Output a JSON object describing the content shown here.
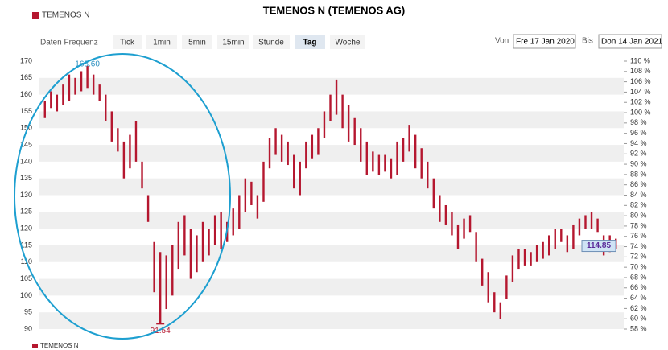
{
  "toolbar": {
    "label": "Daten Frequenz",
    "buttons": [
      "Tick",
      "1min",
      "5min",
      "15min",
      "Stunde",
      "Tag",
      "Woche"
    ],
    "active_index": 5,
    "from_label": "Von",
    "from": "Fre 17 Jan 2020",
    "to_label": "Bis",
    "to": "Don 14 Jan 2021"
  },
  "chart_data": {
    "type": "range_bar",
    "title": "TEMENOS N (TEMENOS AG)",
    "series": [
      {
        "name": "TEMENOS N",
        "color": "#b5172f",
        "low": [
          153,
          156,
          155,
          157,
          158,
          160,
          161,
          162,
          160,
          158,
          152,
          146,
          143,
          135,
          138,
          140,
          132,
          122,
          101,
          91.54,
          96,
          100,
          108,
          112,
          105,
          107,
          110,
          112,
          115,
          114,
          116,
          118,
          120,
          125,
          127,
          123,
          128,
          138,
          142,
          140,
          139,
          132,
          130,
          138,
          141,
          142,
          147,
          152,
          154,
          150,
          146,
          145,
          140,
          136,
          137,
          136,
          137,
          135,
          136,
          140,
          143,
          138,
          135,
          132,
          126,
          122,
          121,
          118,
          114,
          117,
          119,
          110,
          103,
          98,
          95,
          93,
          99,
          104,
          108,
          109,
          109,
          110,
          111,
          112,
          114,
          116,
          113,
          114,
          118,
          120,
          120,
          119,
          112,
          113,
          114
        ],
        "high": [
          158,
          161,
          160,
          163,
          166,
          165,
          167,
          168.6,
          166,
          163,
          160,
          155,
          150,
          146,
          148,
          152,
          140,
          130,
          116,
          113,
          112,
          115,
          122,
          124,
          120,
          118,
          122,
          120,
          124,
          125,
          122,
          126,
          130,
          135,
          134,
          130,
          140,
          147,
          150,
          148,
          146,
          142,
          140,
          146,
          148,
          150,
          155,
          160,
          164.5,
          160,
          157,
          153,
          150,
          146,
          143,
          142,
          142,
          141,
          146,
          147,
          151,
          148,
          144,
          140,
          135,
          130,
          127,
          125,
          121,
          123,
          124,
          119,
          111,
          107,
          101,
          98,
          106,
          112,
          114,
          114,
          113,
          115,
          116,
          118,
          120,
          120,
          118,
          121,
          123,
          124,
          125,
          123,
          118,
          118,
          117
        ]
      }
    ],
    "ylim": [
      90,
      170
    ],
    "yticks": [
      90,
      95,
      100,
      105,
      110,
      115,
      120,
      125,
      130,
      135,
      140,
      145,
      150,
      155,
      160,
      165,
      170
    ],
    "y2lim": [
      58,
      110
    ],
    "y2ticks": [
      {
        "value": 110,
        "label": "110 %"
      },
      {
        "value": 108,
        "label": "108 %"
      },
      {
        "value": 106,
        "label": "106 %"
      },
      {
        "value": 104,
        "label": "104 %"
      },
      {
        "value": 102,
        "label": "102 %"
      },
      {
        "value": 100,
        "label": "100 %"
      },
      {
        "value": 98,
        "label": "98 %"
      },
      {
        "value": 96,
        "label": "96 %"
      },
      {
        "value": 94,
        "label": "94 %"
      },
      {
        "value": 92,
        "label": "92 %"
      },
      {
        "value": 90,
        "label": "90 %"
      },
      {
        "value": 88,
        "label": "88 %"
      },
      {
        "value": 86,
        "label": "86 %"
      },
      {
        "value": 84,
        "label": "84 %"
      },
      {
        "value": 82,
        "label": "82 %"
      },
      {
        "value": 80,
        "label": "80 %"
      },
      {
        "value": 78,
        "label": "78 %"
      },
      {
        "value": 76,
        "label": "76 %"
      },
      {
        "value": 74,
        "label": "74 %"
      },
      {
        "value": 72,
        "label": "72 %"
      },
      {
        "value": 70,
        "label": "70 %"
      },
      {
        "value": 68,
        "label": "68 %"
      },
      {
        "value": 66,
        "label": "66 %"
      },
      {
        "value": 64,
        "label": "64 %"
      },
      {
        "value": 62,
        "label": "62 %"
      },
      {
        "value": 60,
        "label": "60 %"
      },
      {
        "value": 58,
        "label": "58 %"
      }
    ],
    "high_label": {
      "value": 168.6,
      "label": "168.60"
    },
    "low_label": {
      "value": 91.54,
      "label": "91.54"
    },
    "last_label": {
      "value": 114.85,
      "label": "114.85"
    },
    "grid": true
  }
}
